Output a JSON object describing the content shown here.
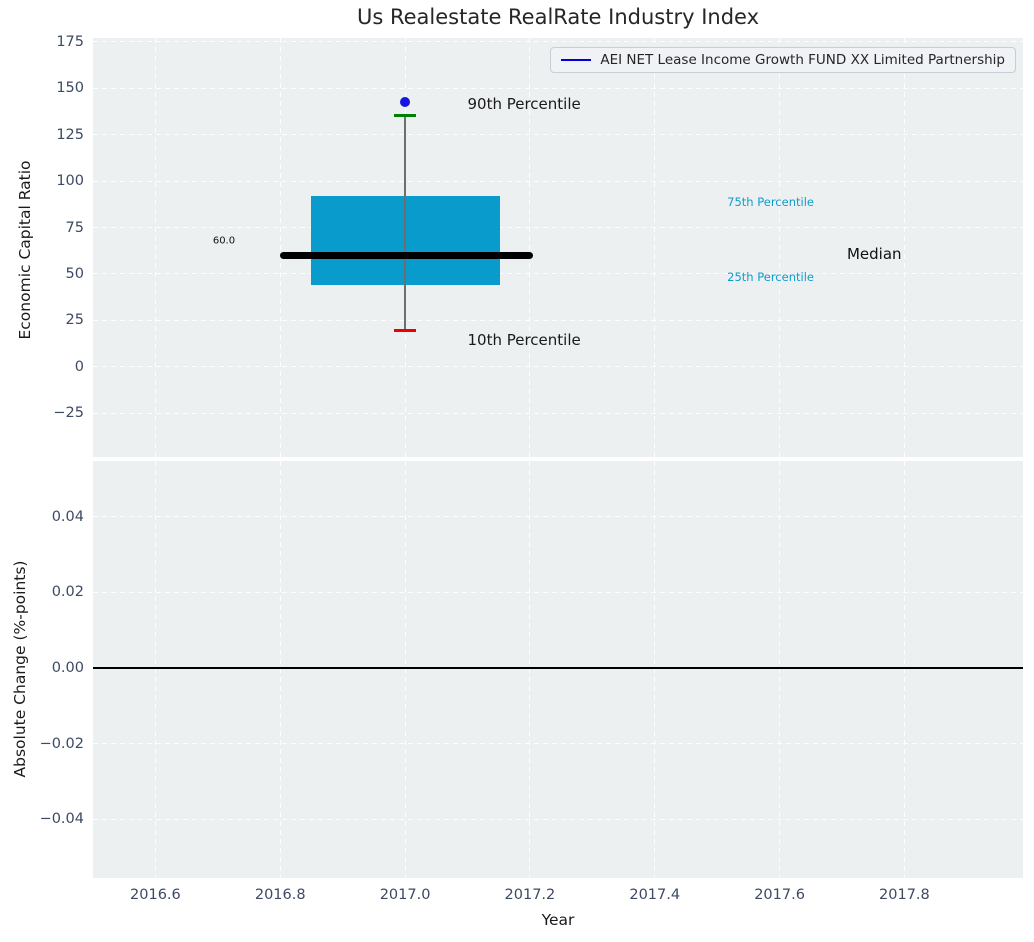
{
  "title": "Us Realestate RealRate Industry Index",
  "legend": {
    "label": "AEI NET Lease Income Growth FUND XX Limited Partnership",
    "line_color": "#0000dd"
  },
  "colors": {
    "plot_background": "#ecf0f1",
    "gridline": "#ffffff",
    "tick_text": "#3d4a63",
    "axis_label_text": "#1a1a1a",
    "title_text": "#262626"
  },
  "chart_data": [
    {
      "type": "box",
      "panel": "top",
      "ylabel": "Economic Capital Ratio",
      "xlim": [
        2016.5,
        2017.99
      ],
      "ylim": [
        -48.5,
        177
      ],
      "grid": true,
      "xtick_values": [
        2016.6,
        2016.8,
        2017.0,
        2017.2,
        2017.4,
        2017.6,
        2017.8
      ],
      "ytick_values": [
        175,
        150,
        125,
        100,
        75,
        50,
        25,
        0,
        -25
      ],
      "ytick_labels": [
        "175",
        "150",
        "125",
        "100",
        "75",
        "50",
        "25",
        "0",
        "−25"
      ],
      "box": {
        "x": 2017.0,
        "median": 60.0,
        "median_label": "60.0",
        "q1": 44.0,
        "q3": 92.0,
        "p10": 19.5,
        "p90": 135.5,
        "company_value": 142.5,
        "box_left": 2016.85,
        "box_right": 2017.152,
        "median_left": 2016.8,
        "median_right": 2017.205,
        "cap_halfwidth": 0.018,
        "colors": {
          "box_fill": "#0a9bcd",
          "median_line": "#000000",
          "whisker": "#6e6e6e",
          "upper_cap": "#008000",
          "lower_cap": "#ee0000",
          "company_marker": "#1515e0"
        }
      },
      "annotations": [
        {
          "text": "90th Percentile",
          "x": 2017.1,
          "y": 141.5,
          "color": "#1a1a1a",
          "size": 15
        },
        {
          "text": "10th Percentile",
          "x": 2017.1,
          "y": 14.5,
          "color": "#1a1a1a",
          "size": 15
        },
        {
          "text": "75th Percentile",
          "x": 2017.516,
          "y": 88.5,
          "color": "#0f9dce",
          "size": 11.5
        },
        {
          "text": "25th Percentile",
          "x": 2017.516,
          "y": 48.3,
          "color": "#0f9dce",
          "size": 11.5
        },
        {
          "text": "Median",
          "x": 2017.708,
          "y": 60.7,
          "color": "#111111",
          "size": 15
        },
        {
          "text": "60.0",
          "x": 2016.692,
          "y": 67.7,
          "color": "#111111",
          "size": 10
        }
      ]
    },
    {
      "type": "line",
      "panel": "bottom",
      "ylabel": "Absolute Change (%-points)",
      "xlabel": "Year",
      "xlim": [
        2016.5,
        2017.99
      ],
      "ylim": [
        -0.0556,
        0.0548
      ],
      "grid": true,
      "xtick_values": [
        2016.6,
        2016.8,
        2017.0,
        2017.2,
        2017.4,
        2017.6,
        2017.8
      ],
      "xtick_labels": [
        "2016.6",
        "2016.8",
        "2017.0",
        "2017.2",
        "2017.4",
        "2017.6",
        "2017.8"
      ],
      "ytick_values": [
        0.04,
        0.02,
        0,
        -0.02,
        -0.04
      ],
      "ytick_labels": [
        "0.04",
        "0.02",
        "0.00",
        "−0.02",
        "−0.04"
      ],
      "zero_line": {
        "y": 0,
        "color": "#000000"
      },
      "series": []
    }
  ]
}
